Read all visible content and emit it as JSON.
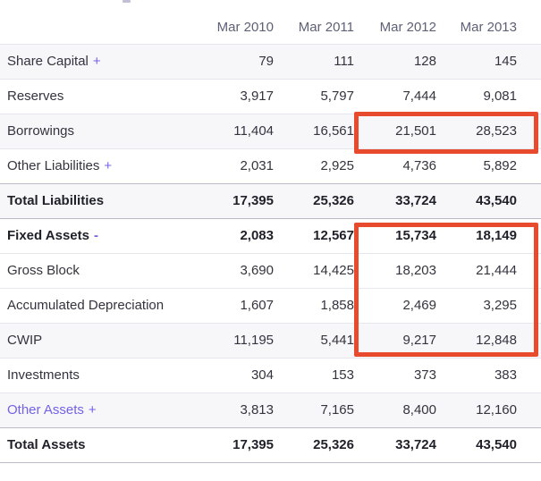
{
  "table": {
    "columns": [
      "Mar 2010",
      "Mar 2011",
      "Mar 2012",
      "Mar 2013"
    ],
    "rows": [
      {
        "label": "Share Capital",
        "toggle": "+",
        "values": [
          "79",
          "111",
          "128",
          "145"
        ],
        "stripe": true,
        "bold": false,
        "strong_top": false,
        "link": false
      },
      {
        "label": "Reserves",
        "toggle": "",
        "values": [
          "3,917",
          "5,797",
          "7,444",
          "9,081"
        ],
        "stripe": false,
        "bold": false,
        "strong_top": false,
        "link": false
      },
      {
        "label": "Borrowings",
        "toggle": "",
        "values": [
          "11,404",
          "16,561",
          "21,501",
          "28,523"
        ],
        "stripe": true,
        "bold": false,
        "strong_top": false,
        "link": false
      },
      {
        "label": "Other Liabilities",
        "toggle": "+",
        "values": [
          "2,031",
          "2,925",
          "4,736",
          "5,892"
        ],
        "stripe": false,
        "bold": false,
        "strong_top": false,
        "link": false
      },
      {
        "label": "Total Liabilities",
        "toggle": "",
        "values": [
          "17,395",
          "25,326",
          "33,724",
          "43,540"
        ],
        "stripe": true,
        "bold": true,
        "strong_top": true,
        "link": false
      },
      {
        "label": "Fixed Assets",
        "toggle": "-",
        "values": [
          "2,083",
          "12,567",
          "15,734",
          "18,149"
        ],
        "stripe": false,
        "bold": true,
        "strong_top": true,
        "link": false
      },
      {
        "label": "Gross Block",
        "toggle": "",
        "values": [
          "3,690",
          "14,425",
          "18,203",
          "21,444"
        ],
        "stripe": false,
        "bold": false,
        "strong_top": false,
        "link": false
      },
      {
        "label": "Accumulated Depreciation",
        "toggle": "",
        "values": [
          "1,607",
          "1,858",
          "2,469",
          "3,295"
        ],
        "stripe": false,
        "bold": false,
        "strong_top": false,
        "link": false
      },
      {
        "label": "CWIP",
        "toggle": "",
        "values": [
          "11,195",
          "5,441",
          "9,217",
          "12,848"
        ],
        "stripe": true,
        "bold": false,
        "strong_top": false,
        "link": false
      },
      {
        "label": "Investments",
        "toggle": "",
        "values": [
          "304",
          "153",
          "373",
          "383"
        ],
        "stripe": false,
        "bold": false,
        "strong_top": false,
        "link": false
      },
      {
        "label": "Other Assets",
        "toggle": "+",
        "values": [
          "3,813",
          "7,165",
          "8,400",
          "12,160"
        ],
        "stripe": true,
        "bold": false,
        "strong_top": false,
        "link": true
      },
      {
        "label": "Total Assets",
        "toggle": "",
        "values": [
          "17,395",
          "25,326",
          "33,724",
          "43,540"
        ],
        "stripe": false,
        "bold": true,
        "strong_top": true,
        "link": false
      }
    ]
  },
  "highlights": [
    {
      "name": "borrowings-mar2012-mar2013",
      "note": "red box around Borrowings values for Mar 2012 and Mar 2013"
    },
    {
      "name": "fixed-assets-block-mar2012-mar2013",
      "note": "red box around Fixed Assets, Gross Block, Accumulated Depreciation and CWIP values for Mar 2012 and Mar 2013"
    }
  ],
  "colors": {
    "accent_purple": "#7262e8",
    "highlight_red": "#e84a2e",
    "stripe_bg": "#f7f7fa",
    "header_text": "#5e6175",
    "body_text": "#33343d",
    "bold_text": "#1f2128",
    "divider": "#e6e7ee",
    "strong_divider": "#b9bcc8"
  }
}
